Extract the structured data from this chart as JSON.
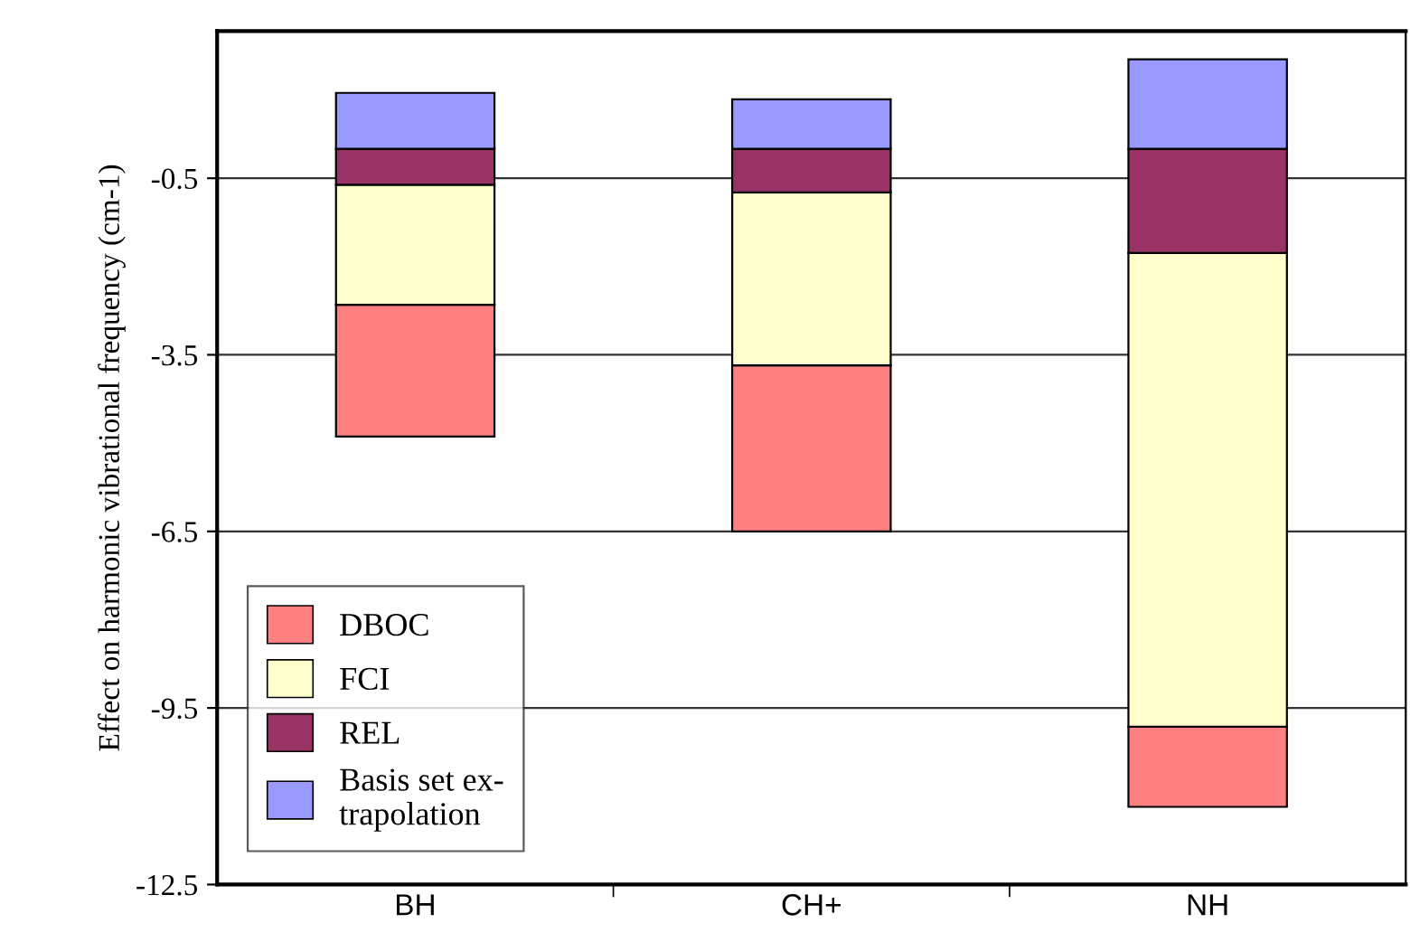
{
  "chart_data": {
    "type": "bar",
    "ylabel": "Effect on harmonic vibrational frequency (cm-1)",
    "categories": [
      "BH",
      "CH+",
      "NH"
    ],
    "series": [
      {
        "name": "DBOC",
        "color": "#ff8080",
        "values": [
          -2.24,
          -2.82,
          -1.36
        ],
        "base": [
          -2.65,
          -3.68,
          -9.82
        ]
      },
      {
        "name": "FCI",
        "color": "#ffffcc",
        "values": [
          -2.04,
          -2.94,
          -8.05
        ],
        "base": [
          -0.61,
          -0.74,
          -1.77
        ]
      },
      {
        "name": "REL",
        "color": "#993366",
        "values": [
          -0.61,
          -0.74,
          -1.77
        ],
        "base": [
          0,
          0,
          0
        ]
      },
      {
        "name": "Basis set ex-\ntrapolation",
        "color": "#9999ff",
        "values": [
          0.95,
          0.84,
          1.52
        ],
        "base": [
          0,
          0,
          0
        ]
      }
    ],
    "ylim": [
      -12.5,
      2
    ],
    "yticks": [
      -12.5,
      -9.5,
      -6.5,
      -3.5,
      -0.5
    ],
    "grid": "y",
    "legend": "bottom left"
  }
}
